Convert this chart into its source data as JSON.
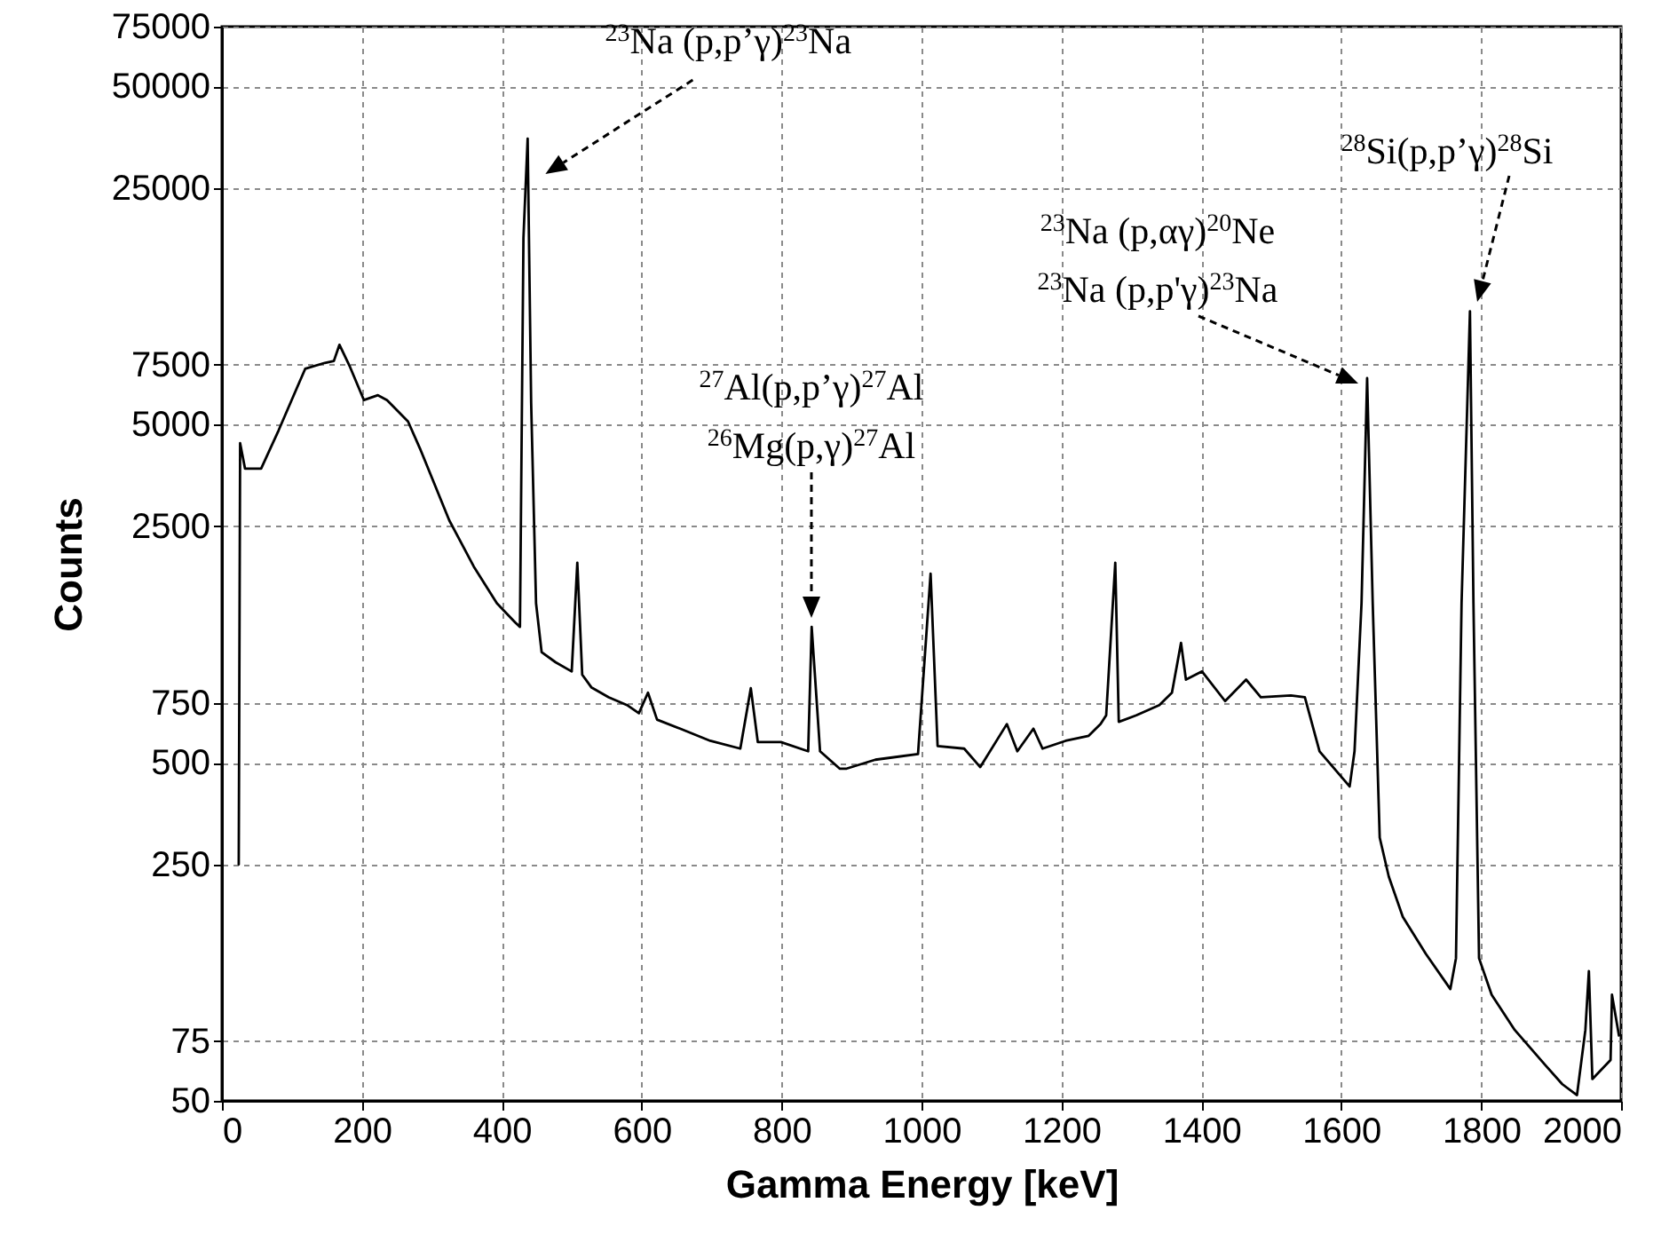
{
  "chart_data": {
    "type": "line",
    "xlabel": "Gamma Energy [keV]",
    "ylabel": "Counts",
    "color": "#000000",
    "x": [
      24,
      26,
      33,
      56,
      81,
      107,
      119,
      147,
      160,
      168,
      183,
      203,
      223,
      236,
      266,
      284,
      325,
      360,
      393,
      419,
      426,
      431,
      437,
      442,
      449,
      457,
      477,
      500,
      508,
      515,
      528,
      553,
      579,
      596,
      609,
      622,
      655,
      698,
      741,
      756,
      766,
      799,
      838,
      843,
      855,
      883,
      893,
      934,
      995,
      1013,
      1023,
      1061,
      1084,
      1122,
      1137,
      1160,
      1173,
      1206,
      1239,
      1256,
      1264,
      1277,
      1282,
      1307,
      1340,
      1358,
      1371,
      1378,
      1401,
      1434,
      1464,
      1485,
      1528,
      1548,
      1569,
      1612,
      1619,
      1629,
      1637,
      1645,
      1655,
      1668,
      1688,
      1721,
      1756,
      1764,
      1772,
      1784,
      1789,
      1797,
      1815,
      1848,
      1891,
      1916,
      1937,
      1949,
      1954,
      1959,
      1985,
      1987,
      1997
    ],
    "values": [
      250,
      4400,
      3700,
      3700,
      4800,
      6400,
      7300,
      7600,
      7700,
      8600,
      7400,
      5900,
      6100,
      5900,
      5100,
      4200,
      2600,
      1900,
      1480,
      1300,
      1260,
      17800,
      35000,
      5800,
      1480,
      1060,
      990,
      930,
      1950,
      910,
      835,
      780,
      740,
      700,
      805,
      670,
      630,
      580,
      550,
      830,
      575,
      575,
      540,
      1260,
      540,
      480,
      480,
      510,
      530,
      1810,
      560,
      550,
      485,
      650,
      540,
      630,
      550,
      580,
      600,
      650,
      690,
      1950,
      660,
      690,
      740,
      805,
      1130,
      880,
      930,
      760,
      880,
      780,
      790,
      780,
      540,
      425,
      540,
      1480,
      6850,
      1480,
      300,
      230,
      175,
      136,
      107,
      132,
      1480,
      10800,
      1480,
      132,
      103,
      81,
      64,
      56,
      52,
      81,
      121,
      58,
      66,
      103,
      78
    ],
    "xlim": [
      0,
      2000
    ],
    "xticks": [
      0,
      200,
      400,
      600,
      800,
      1000,
      1200,
      1400,
      1600,
      1800,
      2000
    ],
    "ylim": [
      50,
      75000
    ],
    "yticks": [
      50,
      75,
      250,
      500,
      750,
      2500,
      5000,
      7500,
      25000,
      50000,
      75000
    ],
    "log": "y",
    "grid": true,
    "annotations": [
      {
        "text": "$^{23}$Na (p,p’γ)$^{23}$Na",
        "x": 437,
        "y": 35000
      },
      "$^{27}$Al(p,p’γ)$^{27}$Al",
      "$^{26}$Mg(p,γ)$^{27}$Al",
      "$^{23}$Na (p,αγ)$^{20}$Ne",
      "$^{23}$Na (p,p'γ)$^{23}$Na",
      "$^{28}$Si(p,p’γ)$^{28}$Si"
    ]
  }
}
